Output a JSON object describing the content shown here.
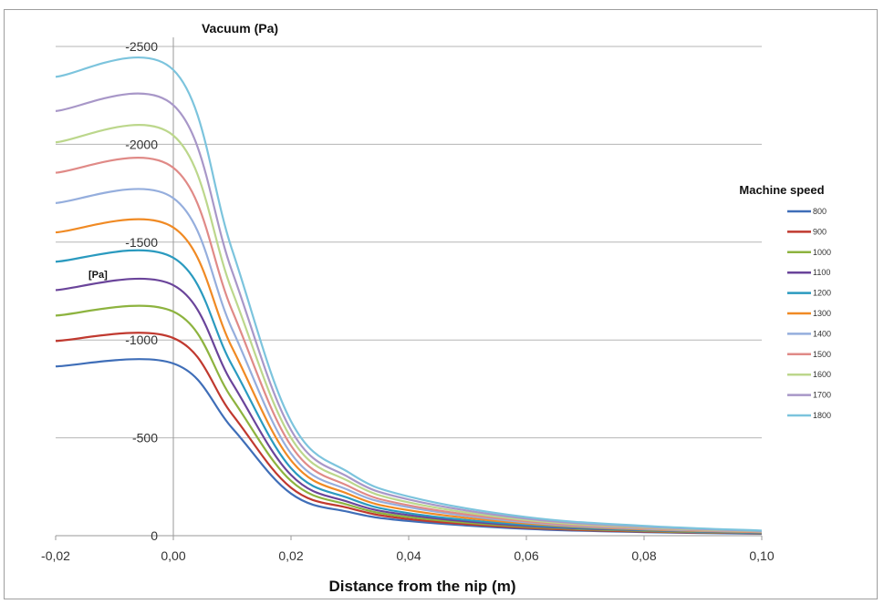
{
  "chart_data": {
    "type": "line",
    "ylabel": "Vacuum (Pa)",
    "xlabel": "Distance from the nip (m)",
    "unit_label": "[Pa]",
    "legend_title": "Machine speed",
    "legend_position": "right",
    "grid": "horizontal",
    "xlim": [
      -0.02,
      0.1
    ],
    "ylim": [
      0,
      -2500
    ],
    "x_ticks": [
      "-0,02",
      "0,00",
      "0,02",
      "0,04",
      "0,06",
      "0,08",
      "0,10"
    ],
    "y_ticks": [
      "0",
      "-500",
      "-1000",
      "-1500",
      "-2000",
      "-2500"
    ],
    "x": [
      -0.02,
      0.0,
      0.01,
      0.02,
      0.03,
      0.04,
      0.06,
      0.08,
      0.1
    ],
    "series": [
      {
        "name": "800",
        "color": "#3f6eb8",
        "values": [
          -865,
          -880,
          -550,
          -215,
          -120,
          -75,
          -35,
          -18,
          -10
        ]
      },
      {
        "name": "900",
        "color": "#c0392f",
        "values": [
          -995,
          -1010,
          -620,
          -245,
          -140,
          -85,
          -40,
          -21,
          -12
        ]
      },
      {
        "name": "1000",
        "color": "#8db33f",
        "values": [
          -1125,
          -1145,
          -700,
          -280,
          -155,
          -95,
          -45,
          -24,
          -13
        ]
      },
      {
        "name": "1100",
        "color": "#6a449a",
        "values": [
          -1255,
          -1280,
          -780,
          -310,
          -170,
          -105,
          -50,
          -27,
          -14
        ]
      },
      {
        "name": "1200",
        "color": "#2a9abf",
        "values": [
          -1400,
          -1420,
          -870,
          -345,
          -190,
          -115,
          -55,
          -29,
          -15
        ]
      },
      {
        "name": "1300",
        "color": "#f08a24",
        "values": [
          -1550,
          -1575,
          -960,
          -385,
          -210,
          -130,
          -62,
          -32,
          -17
        ]
      },
      {
        "name": "1400",
        "color": "#95aedd",
        "values": [
          -1700,
          -1725,
          -1055,
          -420,
          -230,
          -145,
          -68,
          -35,
          -19
        ]
      },
      {
        "name": "1500",
        "color": "#e08a87",
        "values": [
          -1855,
          -1880,
          -1150,
          -460,
          -250,
          -155,
          -74,
          -38,
          -20
        ]
      },
      {
        "name": "1600",
        "color": "#bcd78c",
        "values": [
          -2010,
          -2045,
          -1250,
          -500,
          -275,
          -170,
          -80,
          -42,
          -22
        ]
      },
      {
        "name": "1700",
        "color": "#a897c8",
        "values": [
          -2170,
          -2200,
          -1350,
          -540,
          -295,
          -185,
          -87,
          -46,
          -24
        ]
      },
      {
        "name": "1800",
        "color": "#7cc4dd",
        "values": [
          -2345,
          -2380,
          -1460,
          -585,
          -320,
          -200,
          -95,
          -50,
          -26
        ]
      }
    ]
  }
}
